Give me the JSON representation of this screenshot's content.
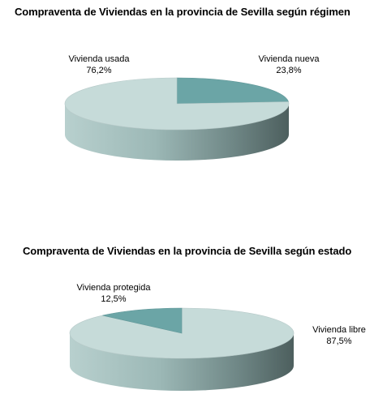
{
  "chart_data": [
    {
      "type": "pie",
      "title": "Compraventa de Viviendas en la provincia de Sevilla según régimen",
      "slices": [
        {
          "label": "Vivienda nueva",
          "value": 23.8,
          "display": "23,8%",
          "color": "#6ba5a6"
        },
        {
          "label": "Vivienda usada",
          "value": 76.2,
          "display": "76,2%",
          "color": "#c6dbd9"
        }
      ],
      "style": "3d"
    },
    {
      "type": "pie",
      "title": "Compraventa de Viviendas en la provincia de Sevilla según estado",
      "slices": [
        {
          "label": "Vivienda libre",
          "value": 87.5,
          "display": "87,5%",
          "color": "#c6dbd9"
        },
        {
          "label": "Vivienda protegida",
          "value": 12.5,
          "display": "12,5%",
          "color": "#6ba5a6"
        }
      ],
      "style": "3d"
    }
  ]
}
